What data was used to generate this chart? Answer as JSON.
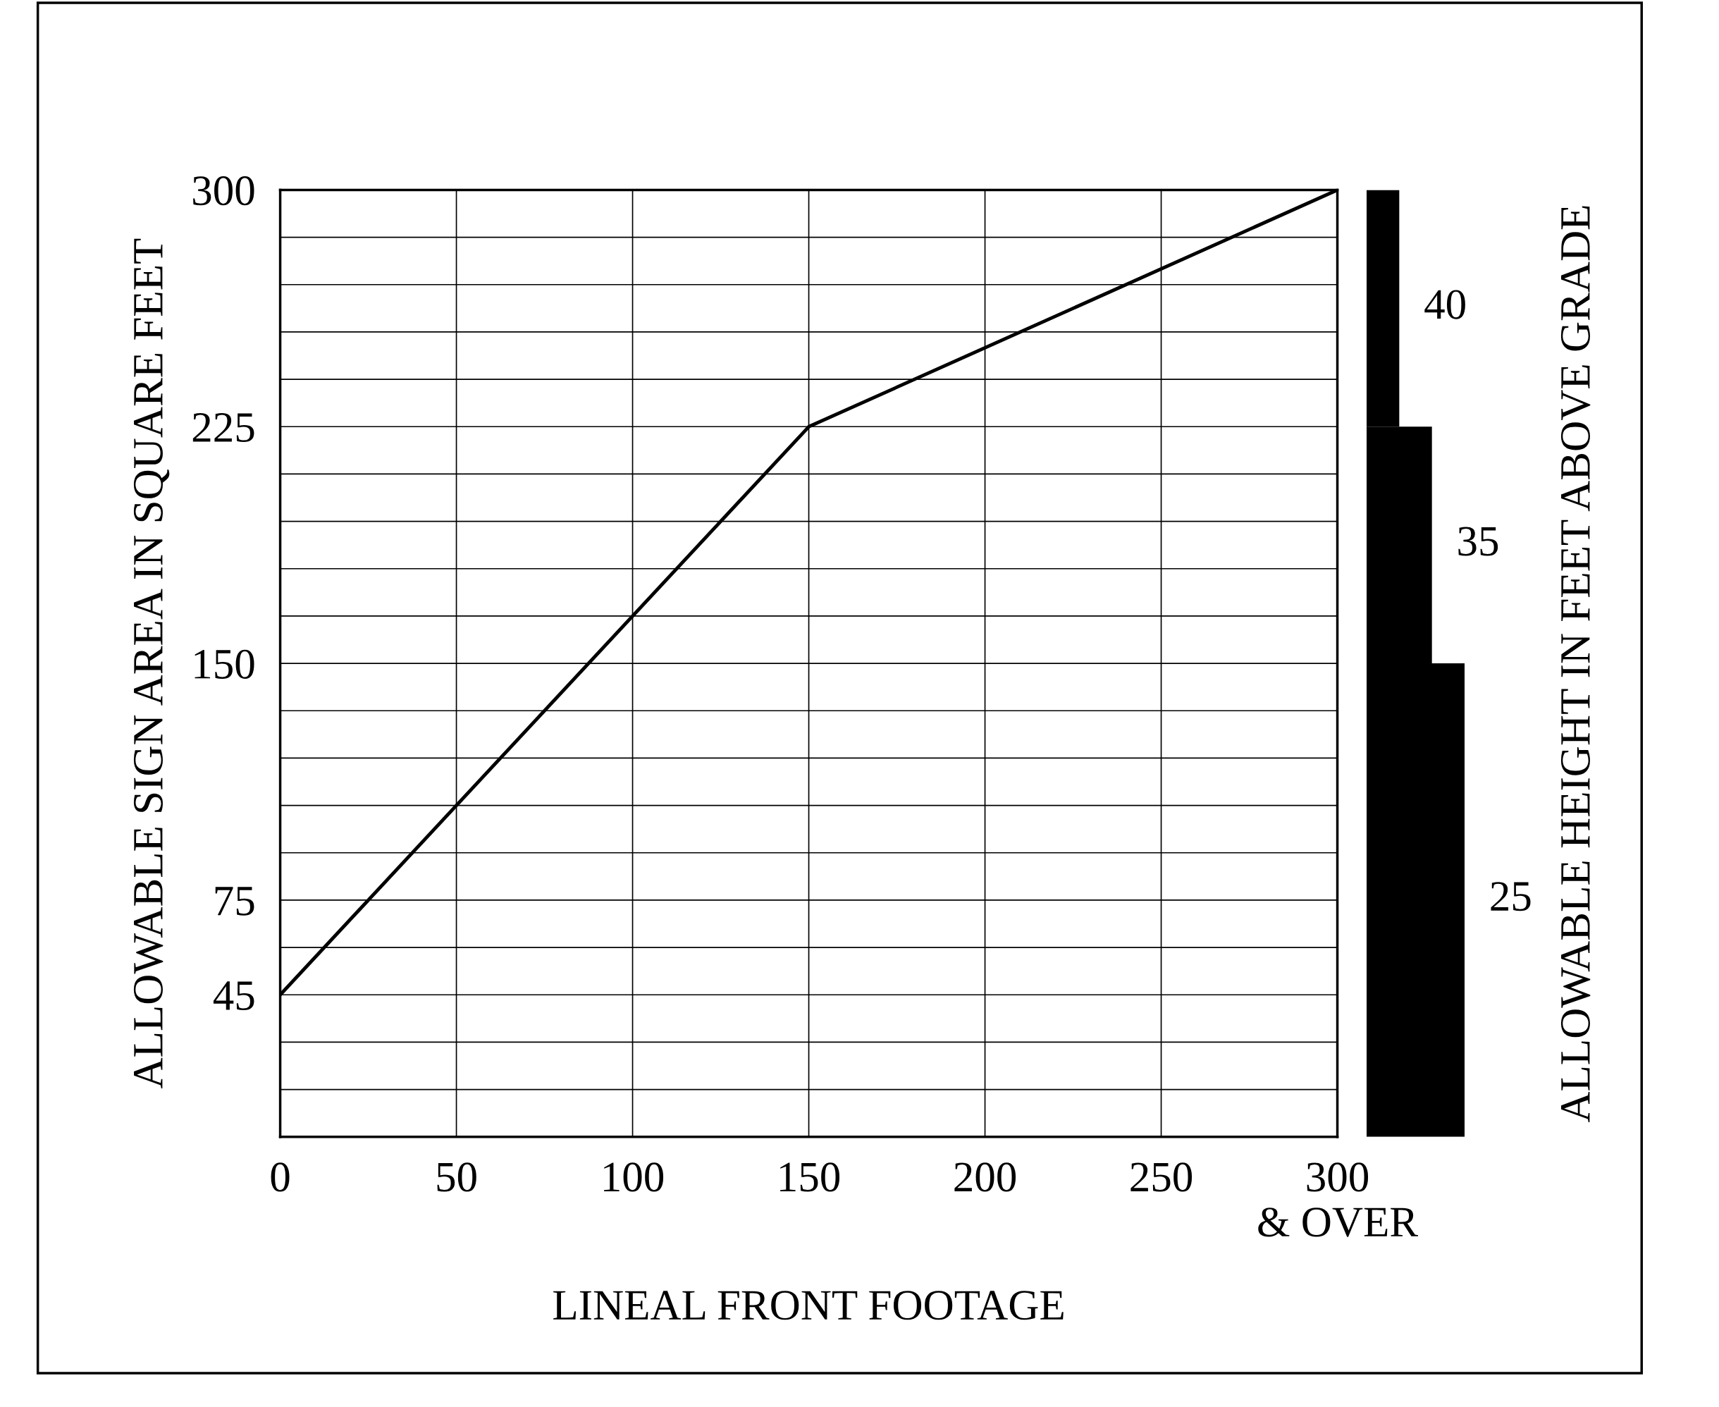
{
  "chart_data": [
    {
      "type": "line",
      "xlabel": "LINEAL FRONT FOOTAGE",
      "ylabel": "ALLOWABLE SIGN AREA IN SQUARE FEET",
      "x": [
        0,
        150,
        300
      ],
      "series": [
        {
          "color": "#000000",
          "values": [
            45,
            225,
            300
          ]
        }
      ],
      "xlim": [
        0,
        300
      ],
      "ylim": [
        0,
        300
      ],
      "xticks": [
        0,
        50,
        100,
        150,
        200,
        250,
        {
          "value": 300,
          "label": "300\n& OVER"
        }
      ],
      "yticks": [
        {
          "value": 0,
          "label": null
        },
        {
          "value": 15,
          "label": null
        },
        {
          "value": 30,
          "label": null
        },
        45,
        {
          "value": 60,
          "label": null
        },
        75,
        {
          "value": 90,
          "label": null
        },
        {
          "value": 105,
          "label": null
        },
        {
          "value": 120,
          "label": null
        },
        {
          "value": 135,
          "label": null
        },
        150,
        {
          "value": 165,
          "label": null
        },
        {
          "value": 180,
          "label": null
        },
        {
          "value": 195,
          "label": null
        },
        {
          "value": 210,
          "label": null
        },
        225,
        {
          "value": 240,
          "label": null
        },
        {
          "value": 255,
          "label": null
        },
        {
          "value": 270,
          "label": null
        },
        {
          "value": 285,
          "label": null
        },
        300
      ],
      "grid": true,
      "marker": "none",
      "line_style": "solid"
    },
    {
      "type": "bar",
      "stacked": true,
      "categories": [
        null
      ],
      "ylabel": "ALLOWABLE HEIGHT IN FEET ABOVE GRADE",
      "ylim": [
        0,
        300
      ],
      "tick_labels": false,
      "series": [
        {
          "color": "#000000",
          "values": [
            150
          ]
        },
        {
          "color": "#000000",
          "values": [
            75
          ]
        },
        {
          "color": "#000000",
          "values": [
            75
          ]
        }
      ],
      "annotations": [
        "25",
        "35",
        "40"
      ]
    }
  ]
}
